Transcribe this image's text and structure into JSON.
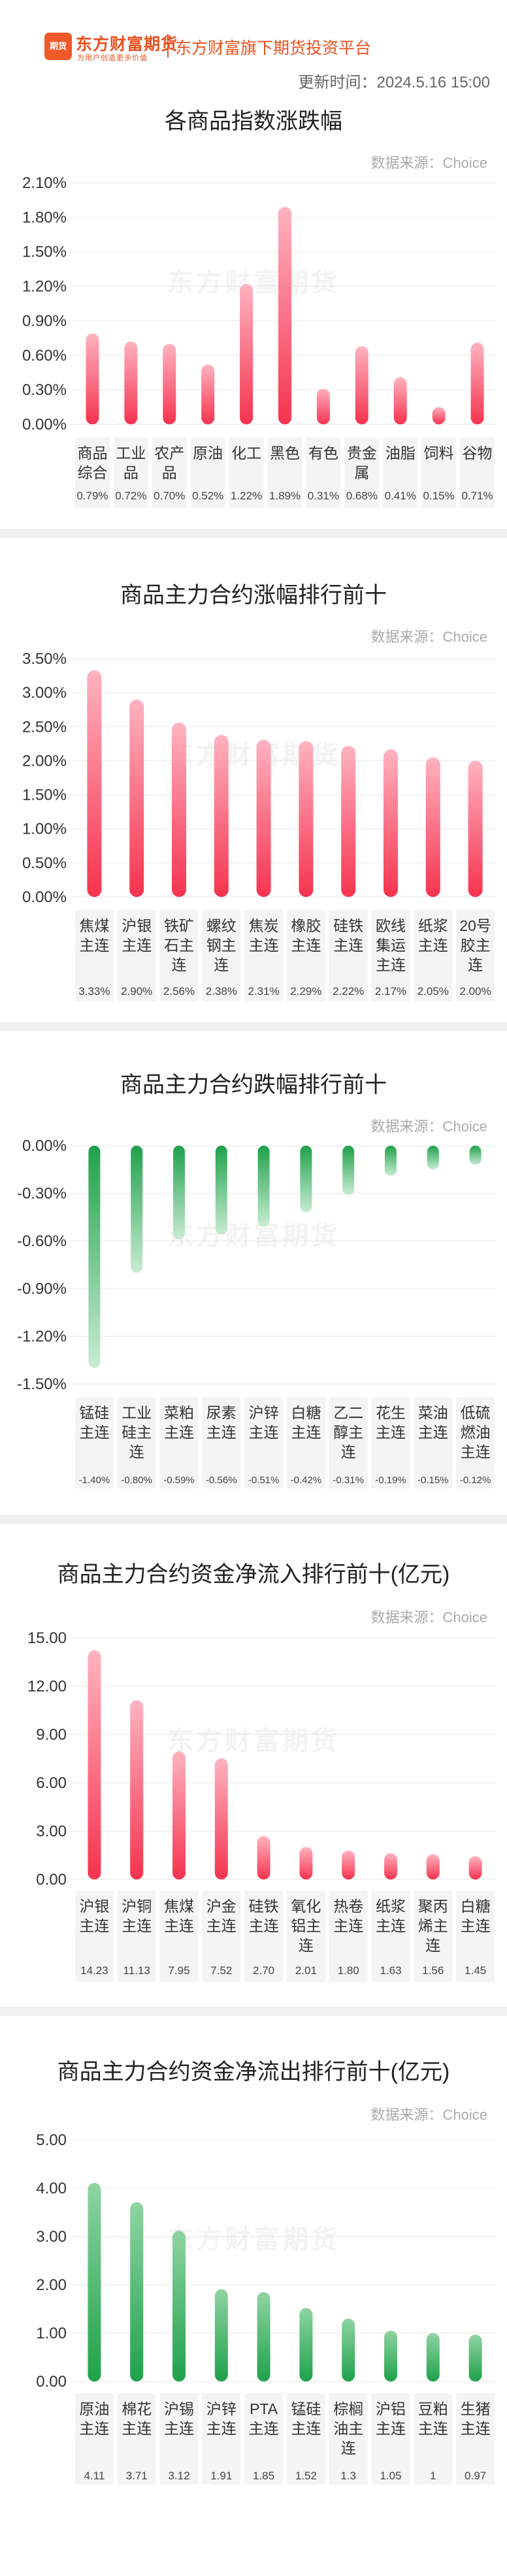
{
  "header": {
    "logo_icon": "东方财富期货",
    "logo_text": "东方财富期货",
    "logo_sub": "为用户创造更多价值",
    "tagline": "东方财富旗下期货投资平台",
    "update_time": "更新时间：2024.5.16 15:00",
    "watermark": "东方财富期货"
  },
  "colors": {
    "rise_top": "#ffb3c0",
    "rise_bottom": "#f5334f",
    "fall_top": "#1fa14b",
    "fall_bottom": "#c9ecd3",
    "inflow_top": "#f5334f",
    "outflow_top": "#1fa14b"
  },
  "chart_data": [
    {
      "type": "bar",
      "title": "各商品指数涨跌幅",
      "source": "数据来源：Choice",
      "categories": [
        "商品\n综合",
        "工业\n品",
        "农产\n品",
        "原油",
        "化工",
        "黑色",
        "有色",
        "贵金\n属",
        "油脂",
        "饲料",
        "谷物"
      ],
      "values": [
        0.79,
        0.72,
        0.7,
        0.52,
        1.22,
        1.89,
        0.31,
        0.68,
        0.41,
        0.15,
        0.71
      ],
      "value_labels": [
        "0.79%",
        "0.72%",
        "0.70%",
        "0.52%",
        "1.22%",
        "1.89%",
        "0.31%",
        "0.68%",
        "0.41%",
        "0.15%",
        "0.71%"
      ],
      "yticks": [
        "0.00%",
        "0.30%",
        "0.60%",
        "0.90%",
        "1.20%",
        "1.50%",
        "1.80%",
        "2.10%"
      ],
      "ylim": [
        0,
        2.1
      ],
      "ylabel": "",
      "style": "rise"
    },
    {
      "type": "bar",
      "title": "商品主力合约涨幅排行前十",
      "source": "数据来源：Choice",
      "categories": [
        "焦煤\n主连",
        "沪银\n主连",
        "铁矿\n石主\n连",
        "螺纹\n钢主\n连",
        "焦炭\n主连",
        "橡胶\n主连",
        "硅铁\n主连",
        "欧线\n集运\n主连",
        "纸浆\n主连",
        "20号\n胶主\n连"
      ],
      "values": [
        3.33,
        2.9,
        2.56,
        2.38,
        2.31,
        2.29,
        2.22,
        2.17,
        2.05,
        2.0
      ],
      "value_labels": [
        "3.33%",
        "2.90%",
        "2.56%",
        "2.38%",
        "2.31%",
        "2.29%",
        "2.22%",
        "2.17%",
        "2.05%",
        "2.00%"
      ],
      "yticks": [
        "0.00%",
        "0.50%",
        "1.00%",
        "1.50%",
        "2.00%",
        "2.50%",
        "3.00%",
        "3.50%"
      ],
      "ylim": [
        0,
        3.5
      ],
      "ylabel": "",
      "style": "rise"
    },
    {
      "type": "bar",
      "title": "商品主力合约跌幅排行前十",
      "source": "数据来源：Choice",
      "categories": [
        "锰硅\n主连",
        "工业\n硅主\n连",
        "菜粕\n主连",
        "尿素\n主连",
        "沪锌\n主连",
        "白糖\n主连",
        "乙二\n醇主\n连",
        "花生\n主连",
        "菜油\n主连",
        "低硫\n燃油\n主连"
      ],
      "values": [
        -1.4,
        -0.8,
        -0.59,
        -0.56,
        -0.51,
        -0.42,
        -0.31,
        -0.19,
        -0.15,
        -0.12
      ],
      "value_labels": [
        "-1.40%",
        "-0.80%",
        "-0.59%",
        "-0.56%",
        "-0.51%",
        "-0.42%",
        "-0.31%",
        "-0.19%",
        "-0.15%",
        "-0.12%"
      ],
      "yticks": [
        "0.00%",
        "-0.30%",
        "-0.60%",
        "-0.90%",
        "-1.20%",
        "-1.50%"
      ],
      "ylim": [
        -1.5,
        0
      ],
      "ylabel": "",
      "style": "fall"
    },
    {
      "type": "bar",
      "title": "商品主力合约资金净流入排行前十(亿元)",
      "source": "数据来源：Choice",
      "categories": [
        "沪银\n主连",
        "沪铜\n主连",
        "焦煤\n主连",
        "沪金\n主连",
        "硅铁\n主连",
        "氧化\n铝主\n连",
        "热卷\n主连",
        "纸浆\n主连",
        "聚丙\n烯主\n连",
        "白糖\n主连"
      ],
      "values": [
        14.23,
        11.13,
        7.95,
        7.52,
        2.7,
        2.01,
        1.8,
        1.63,
        1.56,
        1.45
      ],
      "value_labels": [
        "14.23",
        "11.13",
        "7.95",
        "7.52",
        "2.70",
        "2.01",
        "1.80",
        "1.63",
        "1.56",
        "1.45"
      ],
      "yticks": [
        "0.00",
        "3.00",
        "6.00",
        "9.00",
        "12.00",
        "15.00"
      ],
      "ylim": [
        0,
        15
      ],
      "ylabel": "",
      "style": "rise"
    },
    {
      "type": "bar",
      "title": "商品主力合约资金净流出排行前十(亿元)",
      "source": "数据来源：Choice",
      "categories": [
        "原油\n主连",
        "棉花\n主连",
        "沪锡\n主连",
        "沪锌\n主连",
        "PTA\n主连",
        "锰硅\n主连",
        "棕榈\n油主\n连",
        "沪铝\n主连",
        "豆粕\n主连",
        "生猪\n主连"
      ],
      "values": [
        4.11,
        3.71,
        3.12,
        1.91,
        1.85,
        1.52,
        1.3,
        1.05,
        1,
        0.97
      ],
      "value_labels": [
        "4.11",
        "3.71",
        "3.12",
        "1.91",
        "1.85",
        "1.52",
        "1.3",
        "1.05",
        "1",
        "0.97"
      ],
      "yticks": [
        "0.00",
        "1.00",
        "2.00",
        "3.00",
        "4.00",
        "5.00"
      ],
      "ylim": [
        0,
        5
      ],
      "ylabel": "",
      "style": "outflow"
    }
  ]
}
